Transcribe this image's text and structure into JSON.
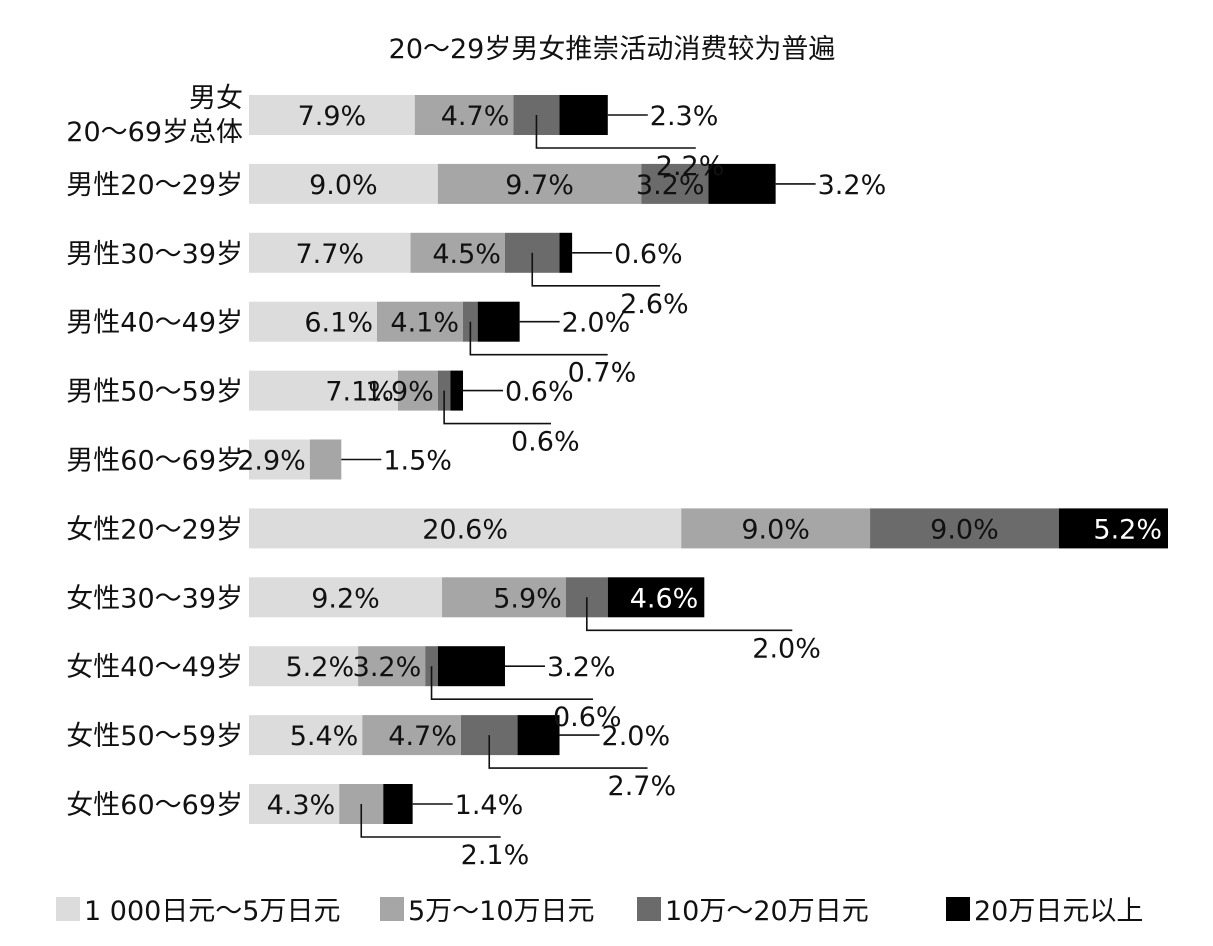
{
  "chart_data": {
    "type": "bar",
    "orientation": "horizontal",
    "stacked": true,
    "title": "20～29岁男女推崇活动消费较为普遍",
    "unit": "%",
    "grid": false,
    "legend_position": "bottom",
    "xlim": [
      0,
      45
    ],
    "categories": [
      "男女\n20～69岁总体",
      "男性20～29岁",
      "男性30～39岁",
      "男性40～49岁",
      "男性50～59岁",
      "男性60～69岁",
      "女性20～29岁",
      "女性30～39岁",
      "女性40～49岁",
      "女性50～59岁",
      "女性60～69岁"
    ],
    "series": [
      {
        "name": "1 000日元～5万日元",
        "color": "#dcdcdc",
        "values": [
          7.9,
          9.0,
          7.7,
          6.1,
          7.1,
          2.9,
          20.6,
          9.2,
          5.2,
          5.4,
          4.3
        ]
      },
      {
        "name": "5万～10万日元",
        "color": "#a6a6a6",
        "values": [
          4.7,
          9.7,
          4.5,
          4.1,
          1.9,
          1.5,
          9.0,
          5.9,
          3.2,
          4.7,
          2.1
        ]
      },
      {
        "name": "10万～20万日元",
        "color": "#6b6b6b",
        "values": [
          2.2,
          3.2,
          2.6,
          0.7,
          0.6,
          0,
          9.0,
          2.0,
          0.6,
          2.7,
          0
        ]
      },
      {
        "name": "20万日元以上",
        "color": "#000000",
        "values": [
          2.3,
          3.2,
          0.6,
          2.0,
          0.6,
          0,
          5.2,
          4.6,
          3.2,
          2.0,
          1.4
        ]
      }
    ],
    "labels": [
      [
        "7.9%",
        "4.7%",
        "2.2%",
        "2.3%"
      ],
      [
        "9.0%",
        "9.7%",
        "3.2%",
        "3.2%"
      ],
      [
        "7.7%",
        "4.5%",
        "2.6%",
        "0.6%"
      ],
      [
        "6.1%",
        "4.1%",
        "0.7%",
        "2.0%"
      ],
      [
        "7.1%",
        "1.9%",
        "0.6%",
        "0.6%"
      ],
      [
        "2.9%",
        "1.5%",
        "",
        ""
      ],
      [
        "20.6%",
        "9.0%",
        "9.0%",
        "5.2%"
      ],
      [
        "9.2%",
        "5.9%",
        "2.0%",
        "4.6%"
      ],
      [
        "5.2%",
        "3.2%",
        "0.6%",
        "3.2%"
      ],
      [
        "5.4%",
        "4.7%",
        "2.7%",
        "2.0%"
      ],
      [
        "4.3%",
        "2.1%",
        "",
        "1.4%"
      ]
    ],
    "label_placement": [
      [
        "in",
        "in",
        "callout-below",
        "callout-right"
      ],
      [
        "in",
        "in",
        "in",
        "callout-right"
      ],
      [
        "in",
        "in",
        "callout-below",
        "callout-right"
      ],
      [
        "in",
        "in",
        "callout-below",
        "callout-right"
      ],
      [
        "in",
        "in",
        "callout-below",
        "callout-right"
      ],
      [
        "in",
        "callout-right",
        "",
        ""
      ],
      [
        "in",
        "in",
        "in",
        "in"
      ],
      [
        "in",
        "in",
        "callout-below",
        "in"
      ],
      [
        "in",
        "in",
        "callout-below",
        "callout-right"
      ],
      [
        "in",
        "in",
        "callout-below",
        "callout-right"
      ],
      [
        "in",
        "callout-below",
        "",
        "callout-right"
      ]
    ]
  }
}
